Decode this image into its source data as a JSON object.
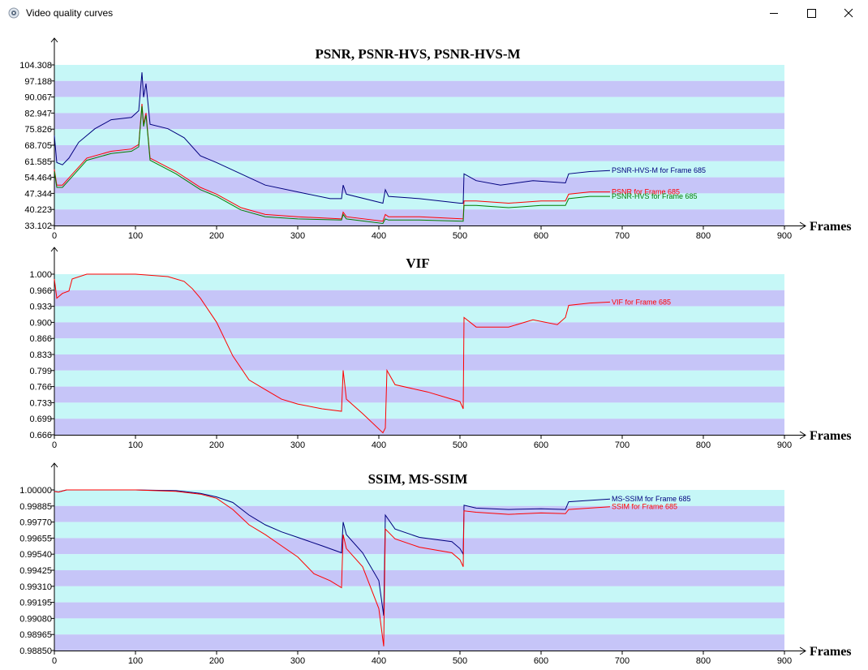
{
  "window": {
    "title": "Video quality curves",
    "icon": "app-icon"
  },
  "colors": {
    "band_light": "#c6f7f7",
    "band_dark": "#c6c5f8",
    "psnr": "#ff0000",
    "psnr_hvs": "#007f00",
    "psnr_hvs_m": "#00007f",
    "vif": "#ff0000",
    "ssim": "#ff0000",
    "ms_ssim": "#00007f"
  },
  "chart_data": [
    {
      "type": "line",
      "title": "PSNR, PSNR-HVS, PSNR-HVS-M",
      "xlabel": "Frames",
      "ylabel": "",
      "xlim": [
        0,
        900
      ],
      "ylim": [
        33.102,
        104.308
      ],
      "x_ticks": [
        "0",
        "100",
        "200",
        "300",
        "400",
        "500",
        "600",
        "700",
        "800",
        "900"
      ],
      "y_ticks": [
        "33.102",
        "40.223",
        "47.344",
        "54.464",
        "61.585",
        "68.705",
        "75.826",
        "82.947",
        "90.067",
        "97.188",
        "104.308"
      ],
      "grid": "alternating horizontal bands",
      "series": [
        {
          "name": "PSNR-HVS-M",
          "color": "#00007f",
          "legend": "PSNR-HVS-M for Frame 685",
          "points": [
            [
              0,
              73
            ],
            [
              3,
              61
            ],
            [
              10,
              60
            ],
            [
              18,
              63
            ],
            [
              30,
              70
            ],
            [
              50,
              76
            ],
            [
              70,
              80
            ],
            [
              95,
              81
            ],
            [
              104,
              84
            ],
            [
              108,
              101
            ],
            [
              110,
              90
            ],
            [
              113,
              96
            ],
            [
              118,
              78
            ],
            [
              140,
              76
            ],
            [
              160,
              72
            ],
            [
              180,
              64
            ],
            [
              200,
              61
            ],
            [
              230,
              56
            ],
            [
              260,
              51
            ],
            [
              300,
              48
            ],
            [
              340,
              45
            ],
            [
              354,
              45
            ],
            [
              356,
              51
            ],
            [
              360,
              47
            ],
            [
              405,
              43
            ],
            [
              408,
              49
            ],
            [
              412,
              46
            ],
            [
              450,
              45
            ],
            [
              500,
              43
            ],
            [
              504,
              43
            ],
            [
              505,
              56
            ],
            [
              520,
              53
            ],
            [
              550,
              51
            ],
            [
              590,
              53
            ],
            [
              630,
              52
            ],
            [
              634,
              56
            ],
            [
              660,
              57
            ],
            [
              685,
              57.5
            ]
          ]
        },
        {
          "name": "PSNR",
          "color": "#ff0000",
          "legend": "PSNR for Frame 685",
          "points": [
            [
              0,
              58
            ],
            [
              3,
              51
            ],
            [
              10,
              51
            ],
            [
              20,
              55
            ],
            [
              40,
              63
            ],
            [
              70,
              66
            ],
            [
              95,
              67
            ],
            [
              104,
              69
            ],
            [
              108,
              87
            ],
            [
              110,
              78
            ],
            [
              113,
              83
            ],
            [
              118,
              63
            ],
            [
              150,
              57
            ],
            [
              180,
              50
            ],
            [
              200,
              47
            ],
            [
              230,
              41
            ],
            [
              260,
              38
            ],
            [
              300,
              37
            ],
            [
              354,
              36
            ],
            [
              356,
              39
            ],
            [
              360,
              37
            ],
            [
              405,
              35
            ],
            [
              408,
              38
            ],
            [
              412,
              37
            ],
            [
              450,
              37
            ],
            [
              504,
              36
            ],
            [
              505,
              44
            ],
            [
              520,
              44
            ],
            [
              560,
              43
            ],
            [
              600,
              44
            ],
            [
              630,
              44
            ],
            [
              634,
              47
            ],
            [
              660,
              48
            ],
            [
              685,
              48
            ]
          ]
        },
        {
          "name": "PSNR-HVS",
          "color": "#007f00",
          "legend": "PSNR-HVS for Frame 685",
          "points": [
            [
              0,
              57
            ],
            [
              3,
              50
            ],
            [
              10,
              50
            ],
            [
              20,
              54
            ],
            [
              40,
              62
            ],
            [
              70,
              65
            ],
            [
              95,
              66
            ],
            [
              104,
              68
            ],
            [
              108,
              86
            ],
            [
              110,
              77
            ],
            [
              113,
              82
            ],
            [
              118,
              62
            ],
            [
              150,
              56
            ],
            [
              180,
              49
            ],
            [
              200,
              46
            ],
            [
              230,
              40
            ],
            [
              260,
              37
            ],
            [
              300,
              36
            ],
            [
              354,
              35.5
            ],
            [
              356,
              38
            ],
            [
              360,
              36
            ],
            [
              405,
              34
            ],
            [
              408,
              36
            ],
            [
              412,
              35.5
            ],
            [
              450,
              35.5
            ],
            [
              504,
              35
            ],
            [
              505,
              42
            ],
            [
              520,
              42
            ],
            [
              560,
              41
            ],
            [
              600,
              42
            ],
            [
              630,
              42
            ],
            [
              634,
              45
            ],
            [
              660,
              46
            ],
            [
              685,
              46
            ]
          ]
        }
      ]
    },
    {
      "type": "line",
      "title": "VIF",
      "xlabel": "Frames",
      "ylabel": "",
      "xlim": [
        0,
        900
      ],
      "ylim": [
        0.666,
        1.0
      ],
      "x_ticks": [
        "0",
        "100",
        "200",
        "300",
        "400",
        "500",
        "600",
        "700",
        "800",
        "900"
      ],
      "y_ticks": [
        "0.666",
        "0.699",
        "0.733",
        "0.766",
        "0.799",
        "0.833",
        "0.866",
        "0.900",
        "0.933",
        "0.966",
        "1.000"
      ],
      "grid": "alternating horizontal bands",
      "series": [
        {
          "name": "VIF",
          "color": "#ff0000",
          "legend": "VIF for Frame 685",
          "points": [
            [
              0,
              0.99
            ],
            [
              3,
              0.95
            ],
            [
              10,
              0.96
            ],
            [
              18,
              0.965
            ],
            [
              22,
              0.99
            ],
            [
              40,
              1.0
            ],
            [
              100,
              1.0
            ],
            [
              140,
              0.995
            ],
            [
              160,
              0.985
            ],
            [
              170,
              0.97
            ],
            [
              180,
              0.95
            ],
            [
              200,
              0.9
            ],
            [
              220,
              0.83
            ],
            [
              240,
              0.78
            ],
            [
              260,
              0.76
            ],
            [
              280,
              0.74
            ],
            [
              300,
              0.73
            ],
            [
              330,
              0.72
            ],
            [
              354,
              0.715
            ],
            [
              356,
              0.8
            ],
            [
              360,
              0.74
            ],
            [
              380,
              0.71
            ],
            [
              405,
              0.67
            ],
            [
              408,
              0.68
            ],
            [
              410,
              0.8
            ],
            [
              420,
              0.77
            ],
            [
              460,
              0.755
            ],
            [
              500,
              0.735
            ],
            [
              504,
              0.72
            ],
            [
              505,
              0.91
            ],
            [
              520,
              0.89
            ],
            [
              560,
              0.89
            ],
            [
              590,
              0.905
            ],
            [
              620,
              0.895
            ],
            [
              630,
              0.91
            ],
            [
              634,
              0.935
            ],
            [
              660,
              0.94
            ],
            [
              685,
              0.942
            ]
          ]
        }
      ]
    },
    {
      "type": "line",
      "title": "SSIM, MS-SSIM",
      "xlabel": "Frames",
      "ylabel": "",
      "xlim": [
        0,
        900
      ],
      "ylim": [
        0.9885,
        1.0
      ],
      "x_ticks": [
        "0",
        "100",
        "200",
        "300",
        "400",
        "500",
        "600",
        "700",
        "800",
        "900"
      ],
      "y_ticks": [
        "0.98850",
        "0.98965",
        "0.99080",
        "0.99195",
        "0.99310",
        "0.99425",
        "0.99540",
        "0.99655",
        "0.99770",
        "0.99885",
        "1.00000"
      ],
      "grid": "alternating horizontal bands",
      "series": [
        {
          "name": "MS-SSIM",
          "color": "#00007f",
          "legend": "MS-SSIM for Frame 685",
          "points": [
            [
              0,
              0.9999
            ],
            [
              5,
              0.99985
            ],
            [
              15,
              1.0
            ],
            [
              100,
              1.0
            ],
            [
              150,
              0.99995
            ],
            [
              180,
              0.99975
            ],
            [
              200,
              0.9995
            ],
            [
              220,
              0.9991
            ],
            [
              240,
              0.9982
            ],
            [
              260,
              0.9975
            ],
            [
              280,
              0.997
            ],
            [
              300,
              0.9966
            ],
            [
              330,
              0.996
            ],
            [
              354,
              0.9955
            ],
            [
              356,
              0.9977
            ],
            [
              360,
              0.9968
            ],
            [
              380,
              0.9955
            ],
            [
              400,
              0.9935
            ],
            [
              406,
              0.991
            ],
            [
              408,
              0.9982
            ],
            [
              420,
              0.9972
            ],
            [
              450,
              0.9966
            ],
            [
              490,
              0.9963
            ],
            [
              500,
              0.9958
            ],
            [
              504,
              0.9954
            ],
            [
              505,
              0.9989
            ],
            [
              520,
              0.9987
            ],
            [
              560,
              0.9986
            ],
            [
              600,
              0.99865
            ],
            [
              630,
              0.9986
            ],
            [
              634,
              0.99915
            ],
            [
              660,
              0.99925
            ],
            [
              685,
              0.99935
            ]
          ]
        },
        {
          "name": "SSIM",
          "color": "#ff0000",
          "legend": "SSIM for Frame 685",
          "points": [
            [
              0,
              0.9999
            ],
            [
              5,
              0.99985
            ],
            [
              15,
              1.0
            ],
            [
              100,
              1.0
            ],
            [
              150,
              0.9999
            ],
            [
              180,
              0.9997
            ],
            [
              200,
              0.9994
            ],
            [
              220,
              0.9986
            ],
            [
              240,
              0.9975
            ],
            [
              260,
              0.9968
            ],
            [
              280,
              0.996
            ],
            [
              300,
              0.9952
            ],
            [
              320,
              0.994
            ],
            [
              340,
              0.9935
            ],
            [
              354,
              0.993
            ],
            [
              356,
              0.9968
            ],
            [
              360,
              0.9958
            ],
            [
              380,
              0.9945
            ],
            [
              400,
              0.9915
            ],
            [
              406,
              0.9888
            ],
            [
              408,
              0.9972
            ],
            [
              420,
              0.9965
            ],
            [
              450,
              0.9959
            ],
            [
              490,
              0.9955
            ],
            [
              500,
              0.995
            ],
            [
              504,
              0.9945
            ],
            [
              505,
              0.9985
            ],
            [
              520,
              0.9984
            ],
            [
              560,
              0.99825
            ],
            [
              600,
              0.99835
            ],
            [
              630,
              0.9983
            ],
            [
              634,
              0.9986
            ],
            [
              660,
              0.9987
            ],
            [
              685,
              0.9988
            ]
          ]
        }
      ]
    }
  ]
}
